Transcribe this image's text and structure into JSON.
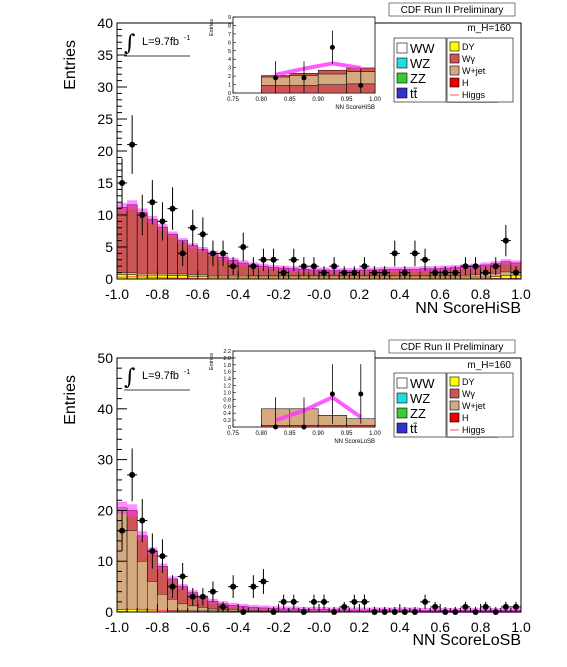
{
  "panels": [
    {
      "id": "hisb",
      "header": "CDF Run II Preliminary",
      "mass_label": "m_H=160",
      "lumi_label": "L=9.7fb",
      "lumi_sup": "-1",
      "integral_symbol": "∫",
      "ylabel": "Entries",
      "xlabel": "NN ScoreHiSB",
      "inset": {
        "ylabel": "Entries",
        "xlabel": "NN ScoreHiSB",
        "xticks": [
          "0.75",
          "0.80",
          "0.85",
          "0.90",
          "0.95",
          "1.00"
        ],
        "yticks": [
          "0",
          "1",
          "2",
          "3",
          "4",
          "5",
          "6",
          "7",
          "8",
          "9"
        ]
      }
    },
    {
      "id": "losb",
      "header": "CDF Run II Preliminary",
      "mass_label": "m_H=160",
      "lumi_label": "L=9.7fb",
      "lumi_sup": "-1",
      "integral_symbol": "∫",
      "ylabel": "Entries",
      "xlabel": "NN ScoreLoSB",
      "inset": {
        "ylabel": "Entries",
        "xlabel": "NN ScoreLoSB",
        "xticks": [
          "0.75",
          "0.80",
          "0.85",
          "0.90",
          "0.95",
          "1.00"
        ],
        "yticks": [
          "0",
          "0.2",
          "0.4",
          "0.6",
          "0.8",
          "1.0",
          "1.2",
          "1.4",
          "1.6",
          "1.8",
          "2.0",
          "2.2"
        ]
      }
    }
  ],
  "legend": {
    "left": [
      {
        "label": "WW",
        "color": "#ffffff"
      },
      {
        "label": "WZ",
        "color": "#22dddd"
      },
      {
        "label": "ZZ",
        "color": "#33cc33"
      },
      {
        "label": "tt̄",
        "color": "#3333cc"
      }
    ],
    "right": [
      {
        "label": "DY",
        "color": "#ffff00"
      },
      {
        "label": "Wγ",
        "color": "#cc5555"
      },
      {
        "label": "W+jet",
        "color": "#d6aa80"
      },
      {
        "label": "H",
        "color": "#ee0000"
      },
      {
        "label": "Higgs",
        "color": "#ff5555",
        "line": true
      }
    ]
  },
  "chart_data": [
    {
      "type": "bar",
      "title": "CDF Run II Preliminary",
      "xlabel": "NN ScoreHiSB",
      "ylabel": "Entries",
      "xlim": [
        -1.0,
        1.0
      ],
      "ylim": [
        0,
        40
      ],
      "xticks": [
        "-1.0",
        "-0.8",
        "-0.6",
        "-0.4",
        "-0.2",
        "-0.0",
        "0.2",
        "0.4",
        "0.6",
        "0.8",
        "1.0"
      ],
      "yticks": [
        "0",
        "5",
        "10",
        "15",
        "20",
        "25",
        "30",
        "35",
        "40"
      ],
      "bins": 40,
      "stack_total": [
        11.2,
        11.6,
        10.4,
        9.3,
        8.1,
        7.0,
        6.0,
        5.2,
        4.6,
        4.0,
        3.4,
        2.9,
        2.5,
        2.2,
        2.0,
        1.8,
        1.7,
        1.6,
        1.5,
        1.4,
        1.4,
        1.3,
        1.3,
        1.3,
        1.4,
        1.4,
        1.5,
        1.5,
        1.5,
        1.5,
        1.6,
        1.6,
        1.7,
        1.8,
        1.9,
        2.0,
        2.2,
        2.4,
        2.7,
        2.5
      ],
      "wjet_top": [
        1.0,
        1.0,
        0.9,
        0.9,
        0.9,
        0.8,
        0.8,
        0.7,
        0.7,
        0.6,
        0.6,
        0.6,
        0.6,
        0.5,
        0.5,
        0.5,
        0.5,
        0.5,
        0.5,
        0.5,
        0.5,
        0.5,
        0.5,
        0.5,
        0.5,
        0.5,
        0.5,
        0.5,
        0.5,
        0.5,
        0.5,
        0.5,
        0.5,
        0.5,
        0.6,
        0.7,
        0.8,
        0.9,
        1.1,
        1.2
      ],
      "dy_top": [
        0.7,
        0.7,
        0.6,
        0.6,
        0.6,
        0.5,
        0.5,
        0.4,
        0.4,
        0.3,
        0.3,
        0.3,
        0.3,
        0.3,
        0.3,
        0.3,
        0.3,
        0.3,
        0.3,
        0.3,
        0.3,
        0.3,
        0.3,
        0.3,
        0.3,
        0.3,
        0.3,
        0.3,
        0.3,
        0.3,
        0.3,
        0.3,
        0.3,
        0.3,
        0.3,
        0.3,
        0.3,
        0.4,
        0.5,
        0.6
      ],
      "higgs": [
        13.2,
        14.0,
        12.5,
        11.0,
        9.4,
        8.1,
        6.8,
        5.8,
        5.0,
        4.3,
        3.7,
        3.1,
        2.7,
        2.4,
        2.2,
        2.0,
        1.9,
        1.8,
        1.7,
        1.6,
        1.6,
        1.5,
        1.5,
        1.5,
        1.6,
        1.6,
        1.7,
        1.7,
        1.7,
        1.7,
        1.8,
        1.8,
        1.9,
        2.0,
        2.1,
        2.3,
        2.6,
        2.9,
        3.2,
        3.0
      ],
      "data_x": [
        -0.975,
        -0.925,
        -0.875,
        -0.825,
        -0.775,
        -0.725,
        -0.675,
        -0.625,
        -0.575,
        -0.525,
        -0.475,
        -0.425,
        -0.375,
        -0.325,
        -0.275,
        -0.225,
        -0.175,
        -0.125,
        -0.075,
        -0.025,
        0.025,
        0.075,
        0.125,
        0.175,
        0.225,
        0.275,
        0.325,
        0.375,
        0.425,
        0.475,
        0.525,
        0.575,
        0.625,
        0.675,
        0.725,
        0.775,
        0.825,
        0.875,
        0.925,
        0.975
      ],
      "data_y": [
        15,
        21,
        10,
        12,
        9,
        11,
        4,
        8,
        7,
        4,
        4,
        2,
        5,
        2,
        3,
        3,
        1,
        3,
        2,
        2,
        1,
        2,
        1,
        1,
        2,
        1,
        1,
        4,
        1,
        4,
        3,
        1,
        1,
        1,
        2,
        2,
        1,
        2,
        6,
        1
      ],
      "inset": {
        "xlim": [
          0.75,
          1.0
        ],
        "ylim": [
          0,
          10
        ],
        "bins_x": [
          0.8,
          0.85,
          0.9,
          0.95,
          1.0
        ],
        "stack_total": [
          2.3,
          2.6,
          3.0,
          3.3
        ],
        "wjet_top": [
          2.1,
          2.3,
          2.5,
          2.8
        ],
        "dy_top": [
          1.0,
          1.0,
          1.1,
          1.2
        ],
        "higgs": [
          2.4,
          3.2,
          3.9,
          3.3
        ],
        "data_x": [
          0.825,
          0.875,
          0.925,
          0.975
        ],
        "data_y": [
          2,
          2,
          6,
          1
        ]
      }
    },
    {
      "type": "bar",
      "title": "CDF Run II Preliminary",
      "xlabel": "NN ScoreLoSB",
      "ylabel": "Entries",
      "xlim": [
        -1.0,
        1.0
      ],
      "ylim": [
        0,
        50
      ],
      "xticks": [
        "-1.0",
        "-0.8",
        "-0.6",
        "-0.4",
        "-0.2",
        "-0.0",
        "0.2",
        "0.4",
        "0.6",
        "0.8",
        "1.0"
      ],
      "yticks": [
        "0",
        "10",
        "20",
        "30",
        "40",
        "50"
      ],
      "bins": 40,
      "stack_total": [
        20.5,
        20.0,
        15.0,
        12.0,
        9.0,
        6.5,
        5.0,
        3.8,
        2.8,
        2.1,
        1.6,
        1.3,
        1.1,
        0.9,
        0.8,
        0.7,
        0.6,
        0.6,
        0.5,
        0.5,
        0.5,
        0.4,
        0.4,
        0.4,
        0.4,
        0.4,
        0.4,
        0.4,
        0.4,
        0.4,
        0.3,
        0.3,
        0.3,
        0.3,
        0.3,
        0.3,
        0.3,
        0.3,
        0.3,
        0.3
      ],
      "wjet_top": [
        20.5,
        16.0,
        10.0,
        6.0,
        3.5,
        2.5,
        1.6,
        1.2,
        0.9,
        0.6,
        0.5,
        0.4,
        0.3,
        0.3,
        0.2,
        0.2,
        0.2,
        0.2,
        0.1,
        0.1,
        0.1,
        0.1,
        0.1,
        0.1,
        0.1,
        0.1,
        0.1,
        0.1,
        0.1,
        0.1,
        0.1,
        0.1,
        0.1,
        0.1,
        0.1,
        0.1,
        0.1,
        0.1,
        0.1,
        0.1
      ],
      "dy_top": [
        0.5,
        0.5,
        0.4,
        0.4,
        0.3,
        0.3,
        0.3,
        0.2,
        0.2,
        0.2,
        0.2,
        0.1,
        0.1,
        0.1,
        0.1,
        0.1,
        0.1,
        0.1,
        0.1,
        0.1,
        0.1,
        0.1,
        0.1,
        0.1,
        0.1,
        0.1,
        0.1,
        0.1,
        0.1,
        0.1,
        0.1,
        0.1,
        0.1,
        0.1,
        0.1,
        0.1,
        0.1,
        0.1,
        0.1,
        0.1
      ],
      "higgs": [
        21.0,
        23.5,
        18.5,
        14.5,
        11.0,
        8.0,
        6.0,
        4.5,
        3.3,
        2.5,
        1.9,
        1.5,
        1.3,
        1.1,
        1.0,
        0.9,
        0.8,
        0.8,
        0.7,
        0.7,
        0.7,
        0.6,
        0.6,
        0.6,
        0.6,
        0.6,
        0.6,
        0.6,
        0.6,
        0.6,
        0.5,
        0.5,
        0.5,
        0.5,
        0.5,
        0.5,
        0.5,
        0.5,
        0.5,
        0.5
      ],
      "data_x": [
        -0.975,
        -0.925,
        -0.875,
        -0.825,
        -0.775,
        -0.725,
        -0.675,
        -0.625,
        -0.575,
        -0.525,
        -0.475,
        -0.425,
        -0.375,
        -0.325,
        -0.275,
        -0.225,
        -0.175,
        -0.125,
        -0.075,
        -0.025,
        0.025,
        0.075,
        0.125,
        0.175,
        0.225,
        0.275,
        0.325,
        0.375,
        0.425,
        0.475,
        0.525,
        0.575,
        0.625,
        0.675,
        0.725,
        0.775,
        0.825,
        0.875,
        0.925,
        0.975
      ],
      "data_y": [
        16,
        27,
        18,
        12,
        11,
        5,
        7,
        3,
        3,
        4,
        1,
        5,
        0,
        5,
        6,
        0,
        2,
        2,
        0,
        2,
        2,
        0,
        1,
        2,
        2,
        0,
        0,
        0,
        0,
        0,
        2,
        1,
        0,
        0,
        1,
        0,
        1,
        0,
        1,
        1
      ],
      "inset": {
        "xlim": [
          0.75,
          1.0
        ],
        "ylim": [
          0,
          2.3
        ],
        "bins_x": [
          0.8,
          0.85,
          0.9,
          0.95,
          1.0
        ],
        "stack_total": [
          0.55,
          0.55,
          0.35,
          0.25
        ],
        "wjet_top": [
          0.55,
          0.55,
          0.35,
          0.25
        ],
        "dy_top": [
          0.05,
          0.05,
          0.05,
          0.05
        ],
        "higgs": [
          0.2,
          0.5,
          0.9,
          0.3
        ],
        "data_x": [
          0.825,
          0.875,
          0.925,
          0.975
        ],
        "data_y": [
          0,
          0,
          1,
          1
        ]
      }
    }
  ]
}
